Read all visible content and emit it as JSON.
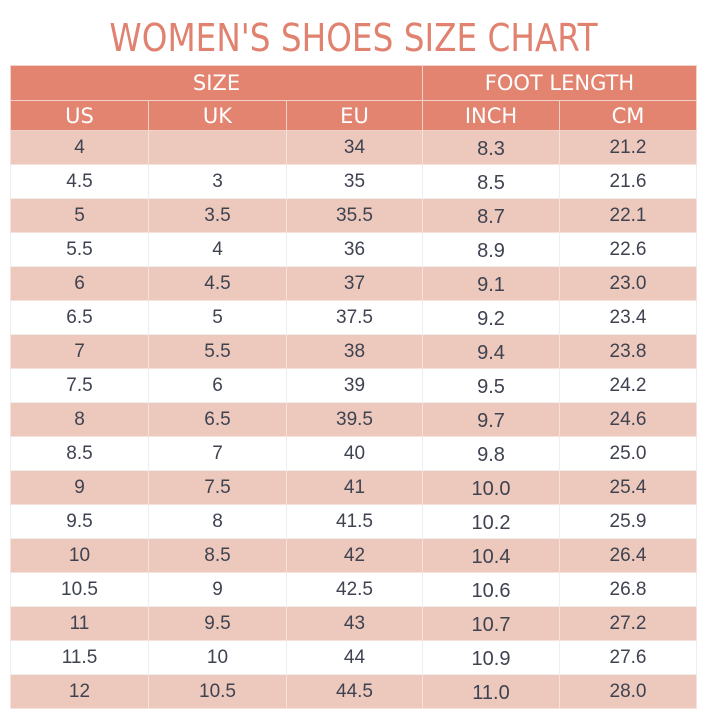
{
  "title": "WOMEN'S SHOES SIZE CHART",
  "colors": {
    "title": "#e0826f",
    "header_bg": "#e38470",
    "header_text": "#ffffff",
    "stripe": "#ecc8bd",
    "cell_text": "#3f4350"
  },
  "header": {
    "groups": [
      {
        "label": "SIZE",
        "colspan": 3
      },
      {
        "label": "FOOT LENGTH",
        "colspan": 2
      }
    ],
    "columns": [
      "US",
      "UK",
      "EU",
      "INCH",
      "CM"
    ]
  },
  "rows": [
    [
      "4",
      "",
      "34",
      "8.3",
      "21.2"
    ],
    [
      "4.5",
      "3",
      "35",
      "8.5",
      "21.6"
    ],
    [
      "5",
      "3.5",
      "35.5",
      "8.7",
      "22.1"
    ],
    [
      "5.5",
      "4",
      "36",
      "8.9",
      "22.6"
    ],
    [
      "6",
      "4.5",
      "37",
      "9.1",
      "23.0"
    ],
    [
      "6.5",
      "5",
      "37.5",
      "9.2",
      "23.4"
    ],
    [
      "7",
      "5.5",
      "38",
      "9.4",
      "23.8"
    ],
    [
      "7.5",
      "6",
      "39",
      "9.5",
      "24.2"
    ],
    [
      "8",
      "6.5",
      "39.5",
      "9.7",
      "24.6"
    ],
    [
      "8.5",
      "7",
      "40",
      "9.8",
      "25.0"
    ],
    [
      "9",
      "7.5",
      "41",
      "10.0",
      "25.4"
    ],
    [
      "9.5",
      "8",
      "41.5",
      "10.2",
      "25.9"
    ],
    [
      "10",
      "8.5",
      "42",
      "10.4",
      "26.4"
    ],
    [
      "10.5",
      "9",
      "42.5",
      "10.6",
      "26.8"
    ],
    [
      "11",
      "9.5",
      "43",
      "10.7",
      "27.2"
    ],
    [
      "11.5",
      "10",
      "44",
      "10.9",
      "27.6"
    ],
    [
      "12",
      "10.5",
      "44.5",
      "11.0",
      "28.0"
    ]
  ]
}
